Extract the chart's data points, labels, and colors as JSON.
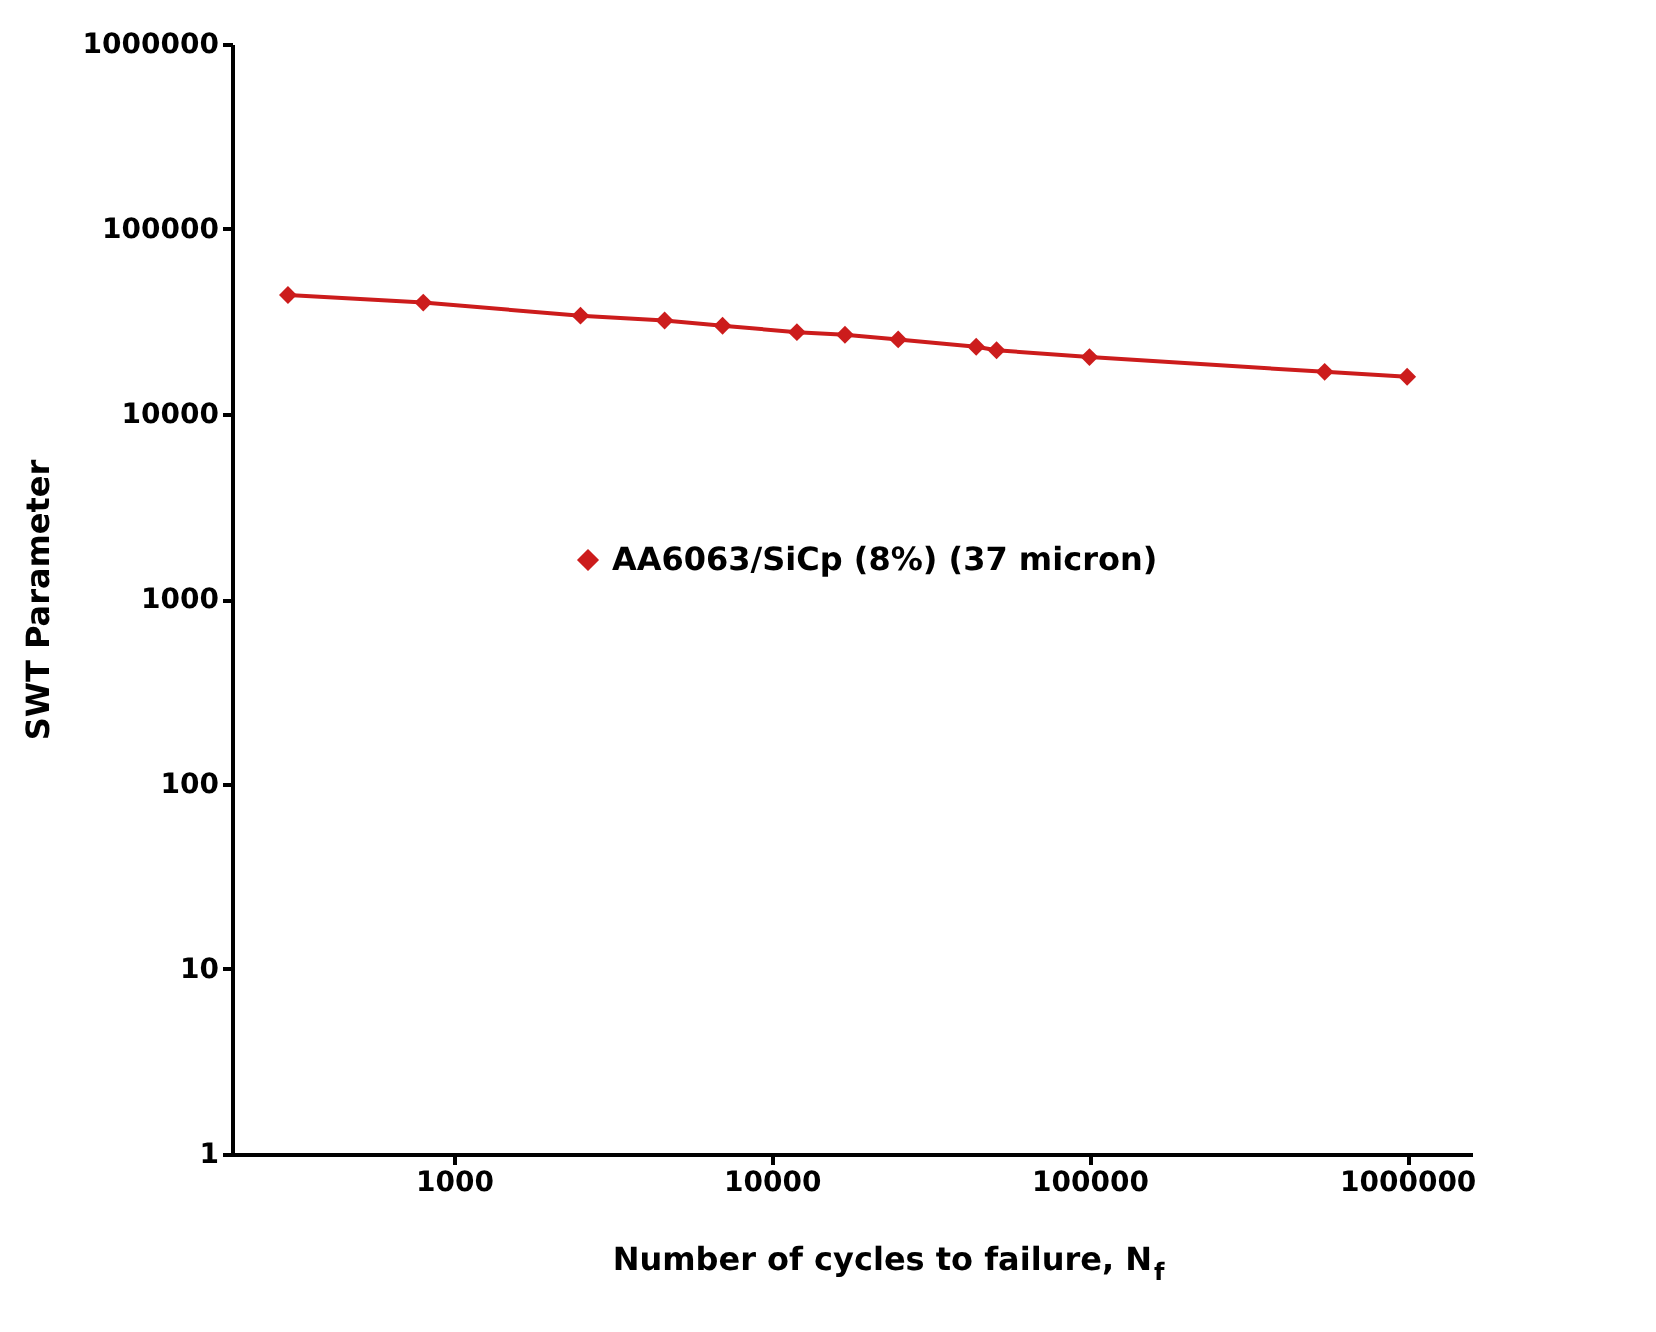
{
  "chart_data": {
    "type": "line",
    "xlabel": "Number of cycles to failure, N$_{f}$",
    "ylabel": "SWT Parameter",
    "x": [
      300,
      800,
      2500,
      4600,
      7000,
      12000,
      17000,
      25000,
      44000,
      51000,
      100000,
      550000,
      1000000
    ],
    "series": [
      {
        "name": "AA6063/SiCp (8%) (37 micron)",
        "color": "#cc1c1c",
        "values": [
          44000,
          40000,
          34000,
          32000,
          30000,
          27700,
          26800,
          25300,
          23100,
          22100,
          20300,
          16900,
          15900
        ]
      }
    ],
    "log": "xy",
    "xlim": [
      200,
      1600000
    ],
    "xticks": [
      1000,
      10000,
      100000,
      1000000
    ],
    "ylim": [
      1,
      1000000
    ],
    "yticks": [
      1,
      10,
      100,
      1000,
      10000,
      100000,
      1000000
    ],
    "grid": false,
    "legend": "right",
    "marker": "diamond",
    "line_style": "solid"
  }
}
